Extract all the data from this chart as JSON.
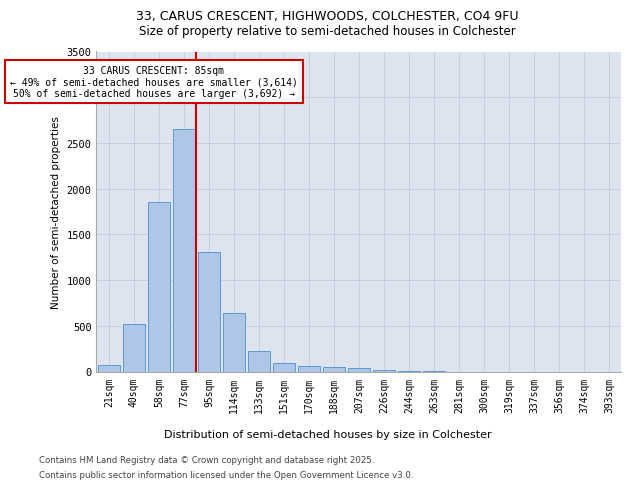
{
  "title_line1": "33, CARUS CRESCENT, HIGHWOODS, COLCHESTER, CO4 9FU",
  "title_line2": "Size of property relative to semi-detached houses in Colchester",
  "xlabel": "Distribution of semi-detached houses by size in Colchester",
  "ylabel": "Number of semi-detached properties",
  "categories": [
    "21sqm",
    "40sqm",
    "58sqm",
    "77sqm",
    "95sqm",
    "114sqm",
    "133sqm",
    "151sqm",
    "170sqm",
    "188sqm",
    "207sqm",
    "226sqm",
    "244sqm",
    "263sqm",
    "281sqm",
    "300sqm",
    "319sqm",
    "337sqm",
    "356sqm",
    "374sqm",
    "393sqm"
  ],
  "values": [
    75,
    525,
    1850,
    2650,
    1310,
    640,
    220,
    95,
    60,
    45,
    35,
    20,
    5,
    5,
    0,
    0,
    0,
    0,
    0,
    0,
    0
  ],
  "bar_color": "#aec6e8",
  "bar_edge_color": "#5b9bd5",
  "vline_x": 3.5,
  "vline_color": "#cc0000",
  "annotation_title": "33 CARUS CRESCENT: 85sqm",
  "annotation_line2": "← 49% of semi-detached houses are smaller (3,614)",
  "annotation_line3": "50% of semi-detached houses are larger (3,692) →",
  "annotation_box_color": "#ffffff",
  "annotation_box_edge": "#cc0000",
  "ylim": [
    0,
    3500
  ],
  "yticks": [
    0,
    500,
    1000,
    1500,
    2000,
    2500,
    3000,
    3500
  ],
  "bg_color": "#dde4f0",
  "footer_line1": "Contains HM Land Registry data © Crown copyright and database right 2025.",
  "footer_line2": "Contains public sector information licensed under the Open Government Licence v3.0."
}
